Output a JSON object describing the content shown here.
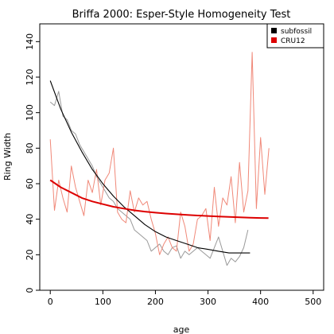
{
  "chart_data": {
    "type": "line",
    "title": "Briffa 2000: Esper-Style Homogeneity Test",
    "xlabel": "age",
    "ylabel": "Ring Width",
    "xlim": [
      -20,
      520
    ],
    "ylim": [
      0,
      150
    ],
    "x_ticks": [
      0,
      100,
      200,
      300,
      400,
      500
    ],
    "y_ticks": [
      0,
      20,
      40,
      60,
      80,
      100,
      120,
      140
    ],
    "legend": {
      "position": "top-right",
      "entries": [
        {
          "label": "subfossil",
          "color": "#000000"
        },
        {
          "label": "CRU12",
          "color": "#dd0000"
        }
      ]
    },
    "series": [
      {
        "name": "subfossil",
        "role": "raw",
        "color": "#999999",
        "x": [
          0,
          8,
          16,
          24,
          32,
          40,
          48,
          56,
          64,
          72,
          80,
          88,
          96,
          104,
          112,
          120,
          128,
          136,
          144,
          152,
          160,
          168,
          176,
          184,
          192,
          200,
          208,
          216,
          224,
          232,
          240,
          248,
          256,
          264,
          272,
          280,
          288,
          296,
          304,
          312,
          320,
          328,
          336,
          344,
          352,
          360,
          368,
          376
        ],
        "values": [
          106,
          104,
          112,
          98,
          96,
          90,
          88,
          82,
          78,
          74,
          70,
          64,
          60,
          56,
          52,
          50,
          46,
          44,
          42,
          40,
          34,
          32,
          30,
          28,
          22,
          24,
          26,
          22,
          20,
          24,
          25,
          18,
          22,
          20,
          22,
          24,
          22,
          20,
          18,
          24,
          30,
          22,
          14,
          18,
          16,
          19,
          24,
          34
        ]
      },
      {
        "name": "subfossil",
        "role": "fit",
        "color": "#000000",
        "x": [
          0,
          20,
          40,
          60,
          80,
          100,
          120,
          140,
          160,
          180,
          200,
          220,
          240,
          260,
          280,
          300,
          320,
          340,
          360,
          380
        ],
        "values": [
          118,
          102,
          89,
          78,
          68,
          60,
          53,
          47,
          42,
          37,
          33,
          30,
          28,
          26,
          24,
          23,
          22,
          21,
          21,
          21
        ]
      },
      {
        "name": "CRU12",
        "role": "raw",
        "color": "#f08878",
        "x": [
          0,
          8,
          16,
          24,
          32,
          40,
          48,
          56,
          64,
          72,
          80,
          88,
          96,
          104,
          112,
          120,
          128,
          136,
          144,
          152,
          160,
          168,
          176,
          184,
          192,
          200,
          208,
          216,
          224,
          232,
          240,
          248,
          256,
          264,
          272,
          280,
          288,
          296,
          304,
          312,
          320,
          328,
          336,
          344,
          352,
          360,
          368,
          376,
          384,
          392,
          400,
          408,
          416
        ],
        "values": [
          85,
          45,
          62,
          52,
          44,
          70,
          58,
          50,
          42,
          62,
          55,
          68,
          48,
          62,
          66,
          80,
          44,
          40,
          38,
          56,
          44,
          52,
          48,
          50,
          40,
          32,
          20,
          26,
          30,
          24,
          22,
          44,
          36,
          22,
          26,
          40,
          42,
          46,
          28,
          58,
          36,
          52,
          48,
          64,
          38,
          72,
          44,
          56,
          134,
          46,
          86,
          54,
          80
        ]
      },
      {
        "name": "CRU12",
        "role": "fit",
        "color": "#dd0000",
        "x": [
          0,
          20,
          40,
          60,
          80,
          100,
          120,
          140,
          160,
          180,
          200,
          220,
          240,
          260,
          280,
          300,
          320,
          340,
          360,
          380,
          400,
          415
        ],
        "values": [
          62,
          58,
          55,
          52,
          50,
          48.5,
          47,
          46,
          45,
          44.3,
          43.7,
          43.2,
          42.8,
          42.4,
          42.1,
          41.8,
          41.5,
          41.3,
          41.1,
          40.9,
          40.7,
          40.6
        ]
      }
    ]
  }
}
